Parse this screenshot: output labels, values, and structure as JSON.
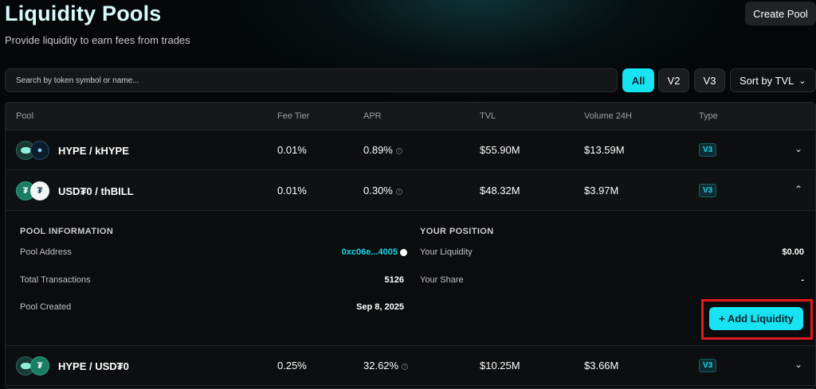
{
  "header": {
    "title": "Liquidity Pools",
    "subtitle": "Provide liquidity to earn fees from trades",
    "create_button": "Create Pool"
  },
  "toolbar": {
    "search_placeholder": "Search by token symbol or name...",
    "filters": [
      "All",
      "V2",
      "V3"
    ],
    "active_filter": "All",
    "sort_label": "Sort by TVL"
  },
  "table": {
    "columns": [
      "Pool",
      "Fee Tier",
      "APR",
      "TVL",
      "Volume 24H",
      "Type"
    ],
    "rows": [
      {
        "pool": "HYPE / kHYPE",
        "fee": "0.01%",
        "apr": "0.89%",
        "tvl": "$55.90M",
        "volume": "$13.59M",
        "type": "V3",
        "expanded": false
      },
      {
        "pool": "USD₮0 / thBILL",
        "fee": "0.01%",
        "apr": "0.30%",
        "tvl": "$48.32M",
        "volume": "$3.97M",
        "type": "V3",
        "expanded": true
      },
      {
        "pool": "HYPE / USD₮0",
        "fee": "0.25%",
        "apr": "32.62%",
        "tvl": "$10.25M",
        "volume": "$3.66M",
        "type": "V3",
        "expanded": false
      }
    ]
  },
  "details": {
    "pool_info_title": "POOL INFORMATION",
    "pool_address_label": "Pool Address",
    "pool_address_value": "0xc06e...4005",
    "total_tx_label": "Total Transactions",
    "total_tx_value": "5126",
    "created_label": "Pool Created",
    "created_value": "Sep 8, 2025",
    "position_title": "YOUR POSITION",
    "liquidity_label": "Your Liquidity",
    "liquidity_value": "$0.00",
    "share_label": "Your Share",
    "share_value": "-",
    "add_button": "+ Add Liquidity"
  },
  "colors": {
    "accent": "#18e3f2",
    "background": "#050708",
    "highlight": "#e11b1b"
  }
}
